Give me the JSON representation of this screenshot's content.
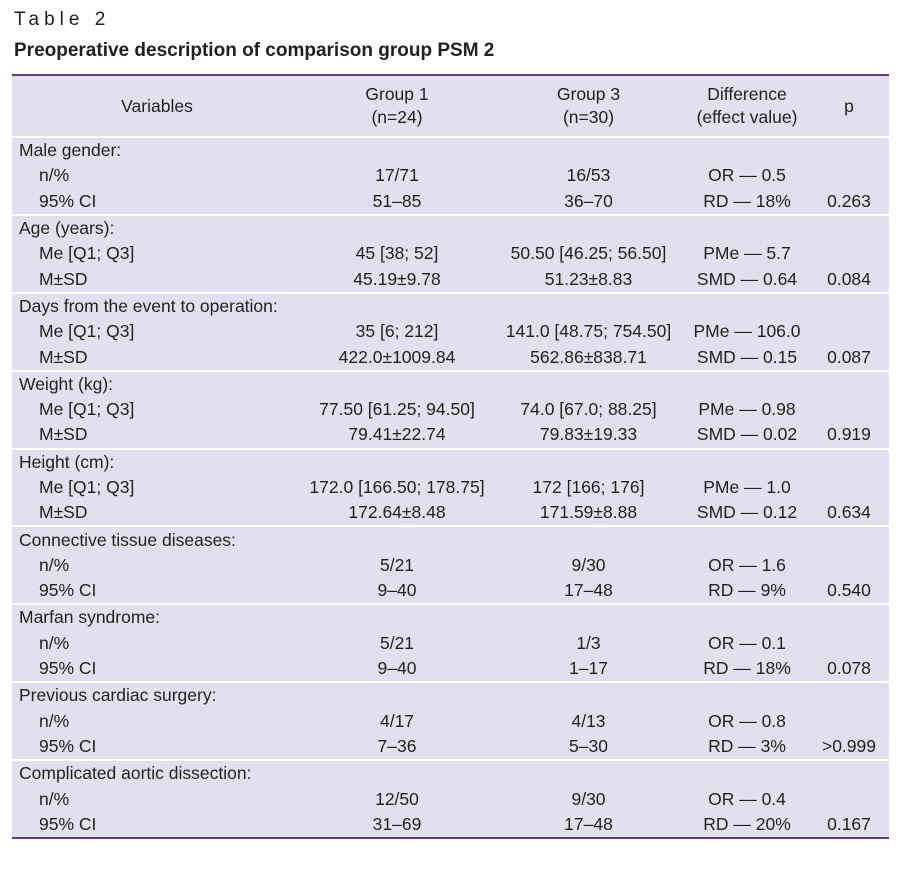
{
  "caption": "Table 2",
  "title": "Preoperative description of comparison group PSM 2",
  "headers": {
    "variables": "Variables",
    "group1_name": "Group 1",
    "group1_n": "(n=24)",
    "group3_name": "Group 3",
    "group3_n": "(n=30)",
    "diff_name": "Difference",
    "diff_sub": "(effect value)",
    "p": "p"
  },
  "groups": [
    {
      "label": "Male gender:",
      "rows": [
        {
          "name": "n/%",
          "g1": "17/71",
          "g3": "16/53",
          "diff": "OR — 0.5",
          "p": ""
        },
        {
          "name": "95% CI",
          "g1": "51–85",
          "g3": "36–70",
          "diff": "RD — 18%",
          "p": "0.263"
        }
      ]
    },
    {
      "label": "Age (years):",
      "rows": [
        {
          "name": "Me [Q1; Q3]",
          "g1": "45 [38; 52]",
          "g3": "50.50 [46.25; 56.50]",
          "diff": "PMe — 5.7",
          "p": ""
        },
        {
          "name": "M±SD",
          "g1": "45.19±9.78",
          "g3": "51.23±8.83",
          "diff": "SMD — 0.64",
          "p": "0.084"
        }
      ]
    },
    {
      "label": "Days from the event to operation:",
      "rows": [
        {
          "name": "Me [Q1; Q3]",
          "g1": "35 [6; 212]",
          "g3": "141.0 [48.75; 754.50]",
          "diff": "PMe — 106.0",
          "p": ""
        },
        {
          "name": "M±SD",
          "g1": "422.0±1009.84",
          "g3": "562.86±838.71",
          "diff": "SMD — 0.15",
          "p": "0.087"
        }
      ]
    },
    {
      "label": "Weight (kg):",
      "rows": [
        {
          "name": "Me [Q1; Q3]",
          "g1": "77.50 [61.25; 94.50]",
          "g3": "74.0 [67.0; 88.25]",
          "diff": "PMe — 0.98",
          "p": ""
        },
        {
          "name": "M±SD",
          "g1": "79.41±22.74",
          "g3": "79.83±19.33",
          "diff": "SMD — 0.02",
          "p": "0.919"
        }
      ]
    },
    {
      "label": "Height (cm):",
      "rows": [
        {
          "name": "Me [Q1; Q3]",
          "g1": "172.0 [166.50; 178.75]",
          "g3": "172 [166; 176]",
          "diff": "PMe — 1.0",
          "p": ""
        },
        {
          "name": "M±SD",
          "g1": "172.64±8.48",
          "g3": "171.59±8.88",
          "diff": "SMD — 0.12",
          "p": "0.634"
        }
      ]
    },
    {
      "label": "Connective tissue diseases:",
      "rows": [
        {
          "name": "n/%",
          "g1": "5/21",
          "g3": "9/30",
          "diff": "OR — 1.6",
          "p": ""
        },
        {
          "name": "95% CI",
          "g1": "9–40",
          "g3": "17–48",
          "diff": "RD — 9%",
          "p": "0.540"
        }
      ]
    },
    {
      "label": "Marfan syndrome:",
      "rows": [
        {
          "name": "n/%",
          "g1": "5/21",
          "g3": "1/3",
          "diff": "OR — 0.1",
          "p": ""
        },
        {
          "name": "95% CI",
          "g1": "9–40",
          "g3": "1–17",
          "diff": "RD — 18%",
          "p": "0.078"
        }
      ]
    },
    {
      "label": "Previous cardiac surgery:",
      "rows": [
        {
          "name": "n/%",
          "g1": "4/17",
          "g3": "4/13",
          "diff": "OR — 0.8",
          "p": ""
        },
        {
          "name": "95% CI",
          "g1": "7–36",
          "g3": "5–30",
          "diff": "RD — 3%",
          "p": ">0.999"
        }
      ]
    },
    {
      "label": "Complicated aortic dissection:",
      "rows": [
        {
          "name": "n/%",
          "g1": "12/50",
          "g3": "9/30",
          "diff": "OR — 0.4",
          "p": ""
        },
        {
          "name": "95% CI",
          "g1": "31–69",
          "g3": "17–48",
          "diff": "RD — 20%",
          "p": "0.167"
        }
      ]
    }
  ]
}
